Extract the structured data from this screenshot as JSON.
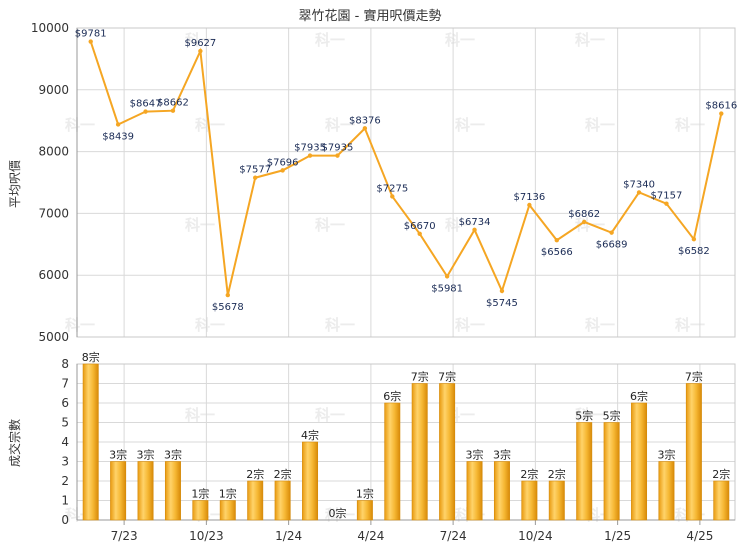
{
  "chart_data": [
    {
      "type": "line",
      "title": "翠竹花園 - 實用呎價走勢",
      "ylabel": "平均呎價",
      "ylim": [
        5000,
        10000
      ],
      "yticks": [
        "5000",
        "6000",
        "7000",
        "8000",
        "9000",
        "10000"
      ],
      "xticks": [
        "7/23",
        "10/23",
        "1/24",
        "4/24",
        "7/24",
        "10/24",
        "1/25",
        "4/25"
      ],
      "series": [
        {
          "color": "#f5a623",
          "values": [
            9781,
            8439,
            8647,
            8662,
            9627,
            5678,
            7577,
            7696,
            7935,
            7935,
            8376,
            7275,
            6670,
            5981,
            6734,
            5745,
            7136,
            6566,
            6862,
            6689,
            7340,
            7157,
            6582,
            8616
          ],
          "labels": [
            "$9781",
            "$8439",
            "$8647",
            "$8662",
            "$9627",
            "$5678",
            "$7577",
            "$7696",
            "$7935",
            "$7935",
            "$8376",
            "$7275",
            "$6670",
            "$5981",
            "$6734",
            "$5745",
            "$7136",
            "$6566",
            "$6862",
            "$6689",
            "$7340",
            "$7157",
            "$6582",
            "$8616"
          ]
        }
      ],
      "grid": true
    },
    {
      "type": "bar",
      "ylabel": "成交宗數",
      "ylim": [
        0,
        8
      ],
      "yticks": [
        "0",
        "1",
        "2",
        "3",
        "4",
        "5",
        "6",
        "7",
        "8"
      ],
      "xticks": [
        "7/23",
        "10/23",
        "1/24",
        "4/24",
        "7/24",
        "10/24",
        "1/25",
        "4/25"
      ],
      "values": [
        8,
        3,
        3,
        3,
        1,
        1,
        2,
        2,
        4,
        0,
        1,
        6,
        7,
        7,
        3,
        3,
        2,
        2,
        5,
        5,
        6,
        3,
        7,
        2
      ],
      "labels": [
        "8宗",
        "3宗",
        "3宗",
        "3宗",
        "1宗",
        "1宗",
        "2宗",
        "2宗",
        "4宗",
        "0宗",
        "1宗",
        "6宗",
        "7宗",
        "7宗",
        "3宗",
        "3宗",
        "2宗",
        "2宗",
        "5宗",
        "5宗",
        "6宗",
        "3宗",
        "7宗",
        "2宗"
      ],
      "color": "#f0a928",
      "grid": true
    }
  ],
  "watermark": "科一"
}
